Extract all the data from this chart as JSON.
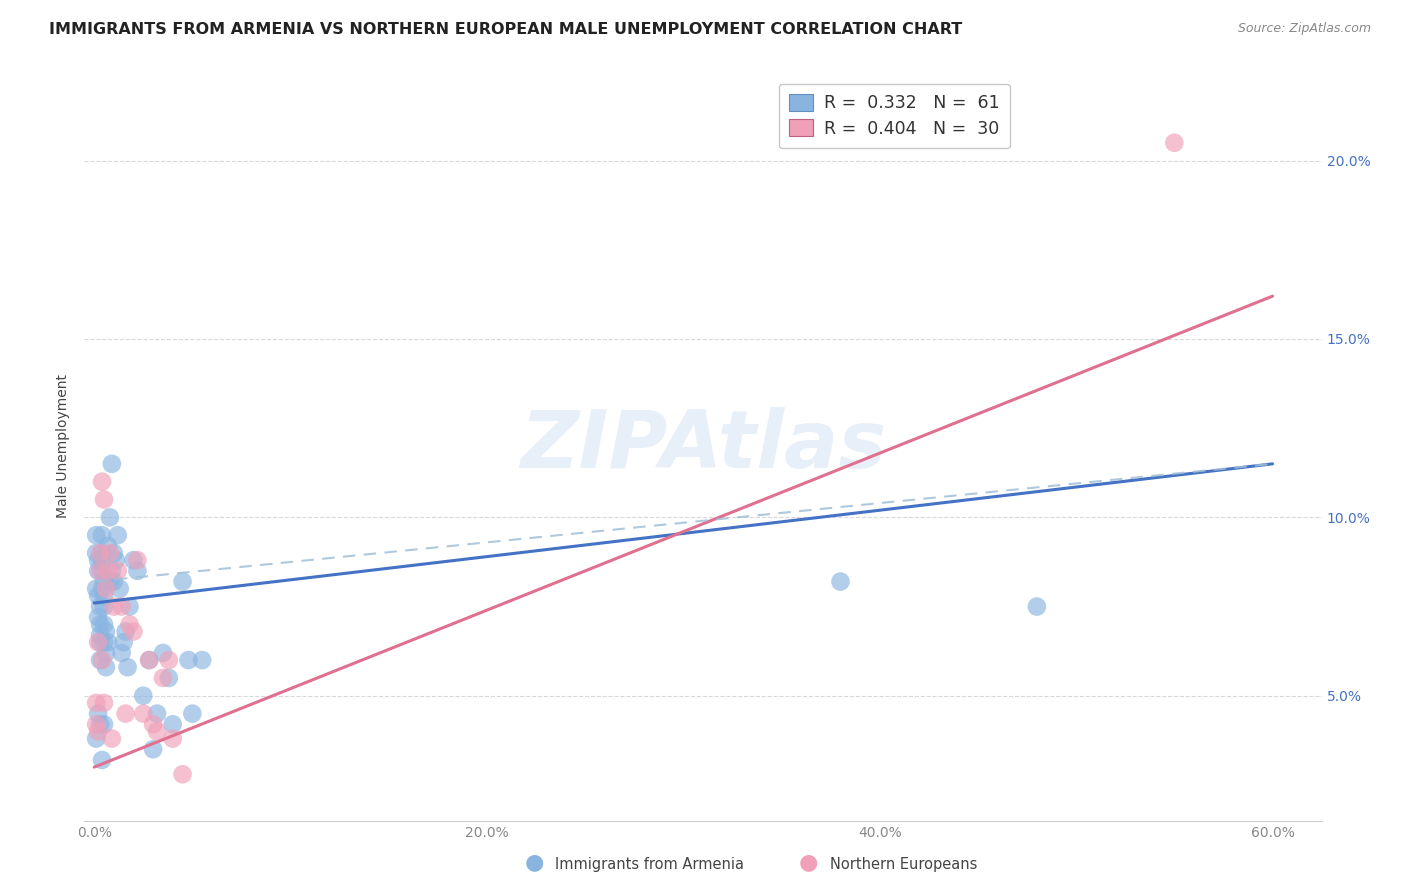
{
  "title": "IMMIGRANTS FROM ARMENIA VS NORTHERN EUROPEAN MALE UNEMPLOYMENT CORRELATION CHART",
  "source": "Source: ZipAtlas.com",
  "ylabel": "Male Unemployment",
  "ylim": [
    0.015,
    0.225
  ],
  "xlim": [
    -0.005,
    0.625
  ],
  "watermark": "ZIPAtlas",
  "armenia_color": "#8ab4e0",
  "northern_color": "#f0a0b8",
  "arm_line_color": "#4472c4",
  "nor_line_color": "#e07090",
  "dash_line_color": "#a0c0d8",
  "title_fontsize": 11.5,
  "axis_label_fontsize": 10,
  "tick_fontsize": 10,
  "right_tick_color": "#4472c4",
  "background_color": "#ffffff",
  "grid_color": "#d8d8d8",
  "legend_R1": "R =  0.332",
  "legend_N1": "N =  61",
  "legend_R2": "R =  0.404",
  "legend_N2": "N =  30",
  "legend_color1": "#4472c4",
  "legend_color2": "#e07090",
  "arm_intercept": 0.076,
  "arm_slope": 0.065,
  "nor_intercept": 0.03,
  "nor_slope": 0.22,
  "dash_intercept": 0.082,
  "dash_slope": 0.055,
  "armenia_x": [
    0.001,
    0.001,
    0.001,
    0.001,
    0.002,
    0.002,
    0.002,
    0.002,
    0.002,
    0.003,
    0.003,
    0.003,
    0.003,
    0.003,
    0.003,
    0.004,
    0.004,
    0.004,
    0.004,
    0.004,
    0.004,
    0.005,
    0.005,
    0.005,
    0.005,
    0.005,
    0.005,
    0.006,
    0.006,
    0.006,
    0.007,
    0.007,
    0.008,
    0.008,
    0.009,
    0.009,
    0.01,
    0.01,
    0.011,
    0.012,
    0.013,
    0.014,
    0.015,
    0.016,
    0.017,
    0.018,
    0.02,
    0.022,
    0.025,
    0.028,
    0.03,
    0.032,
    0.035,
    0.038,
    0.04,
    0.045,
    0.048,
    0.05,
    0.055,
    0.38,
    0.48
  ],
  "armenia_y": [
    0.095,
    0.09,
    0.08,
    0.038,
    0.088,
    0.085,
    0.078,
    0.072,
    0.045,
    0.075,
    0.07,
    0.067,
    0.065,
    0.06,
    0.042,
    0.095,
    0.09,
    0.088,
    0.085,
    0.08,
    0.032,
    0.082,
    0.078,
    0.075,
    0.07,
    0.065,
    0.042,
    0.068,
    0.062,
    0.058,
    0.092,
    0.065,
    0.1,
    0.082,
    0.115,
    0.085,
    0.09,
    0.082,
    0.088,
    0.095,
    0.08,
    0.062,
    0.065,
    0.068,
    0.058,
    0.075,
    0.088,
    0.085,
    0.05,
    0.06,
    0.035,
    0.045,
    0.062,
    0.055,
    0.042,
    0.082,
    0.06,
    0.045,
    0.06,
    0.082,
    0.075
  ],
  "northern_x": [
    0.001,
    0.001,
    0.002,
    0.002,
    0.003,
    0.003,
    0.004,
    0.004,
    0.005,
    0.005,
    0.006,
    0.007,
    0.008,
    0.009,
    0.01,
    0.012,
    0.014,
    0.016,
    0.018,
    0.02,
    0.022,
    0.025,
    0.028,
    0.03,
    0.032,
    0.035,
    0.038,
    0.04,
    0.045,
    0.55
  ],
  "northern_y": [
    0.048,
    0.042,
    0.065,
    0.04,
    0.09,
    0.085,
    0.11,
    0.06,
    0.105,
    0.048,
    0.08,
    0.085,
    0.09,
    0.038,
    0.075,
    0.085,
    0.075,
    0.045,
    0.07,
    0.068,
    0.088,
    0.045,
    0.06,
    0.042,
    0.04,
    0.055,
    0.06,
    0.038,
    0.028,
    0.205
  ]
}
